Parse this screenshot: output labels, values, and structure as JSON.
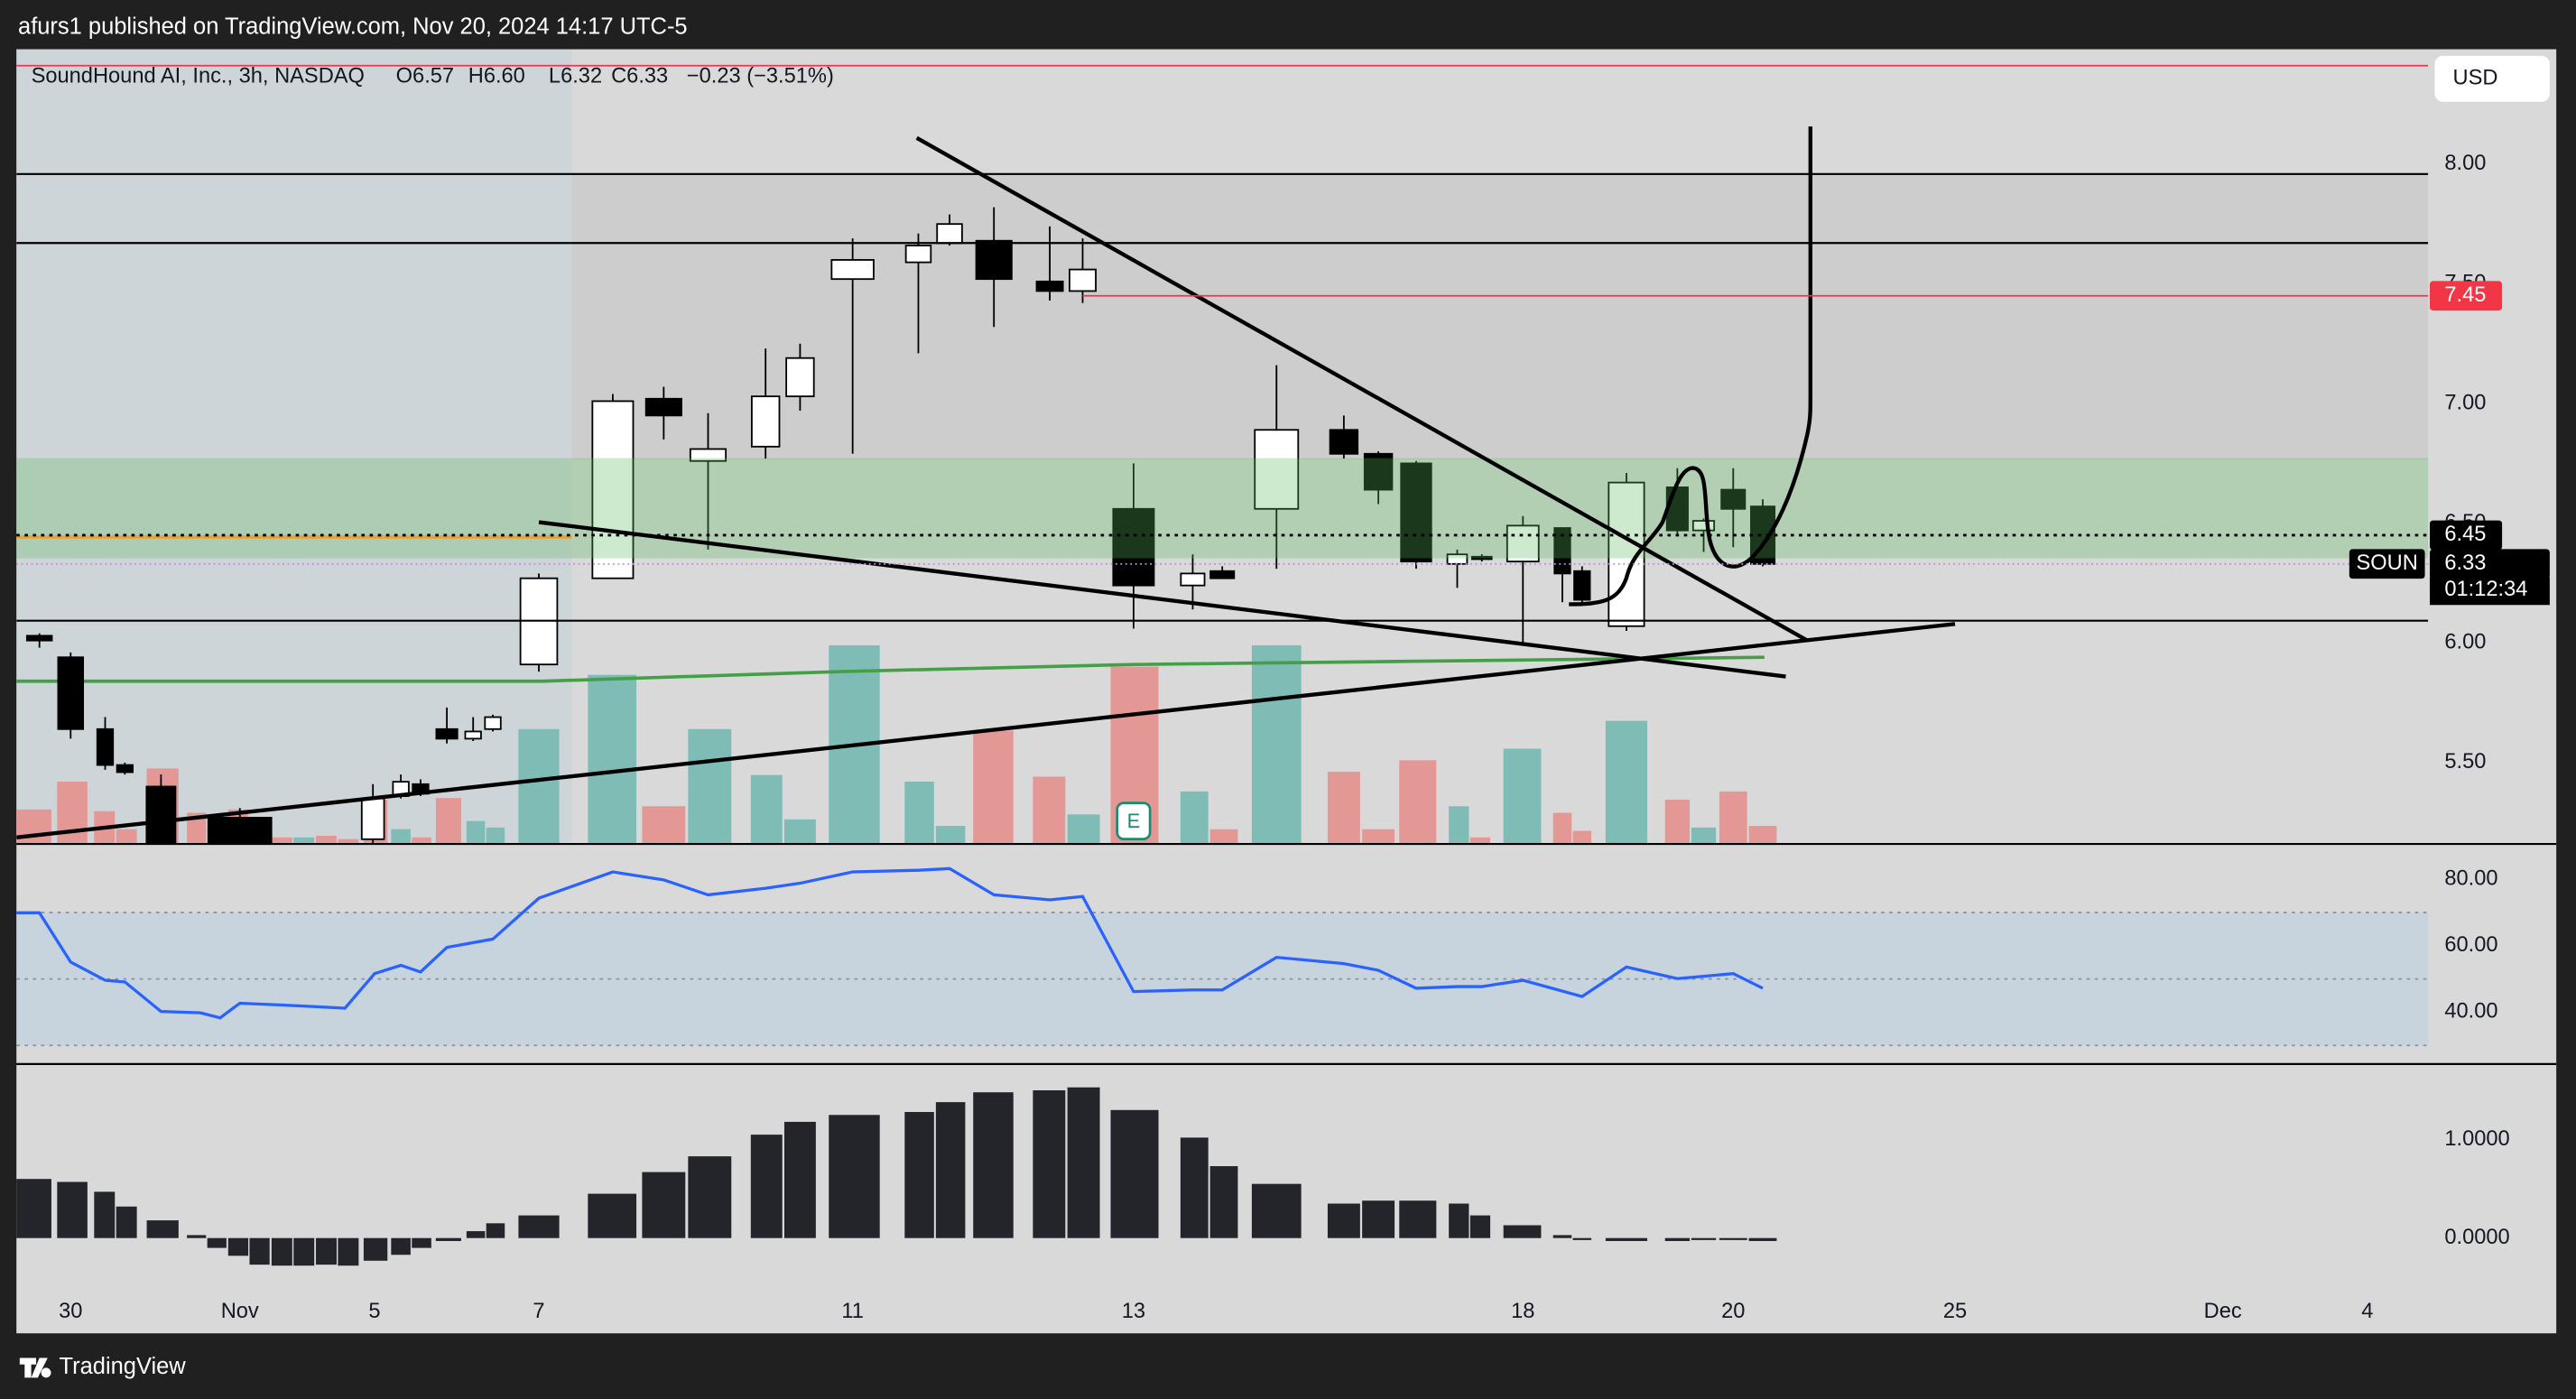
{
  "header": {
    "publisher": "afurs1 published on TradingView.com, Nov 20, 2024 14:17 UTC-5"
  },
  "chart_data": {
    "type": "candlestick",
    "title": "SoundHound AI, Inc., 3h, NASDAQ",
    "ohlc_legend": [
      "O6.57",
      "H6.60",
      "L6.32",
      "C6.33",
      "−0.23 (−3.51%)"
    ],
    "currency": "USD",
    "x": [
      0.7,
      1.65,
      2.7,
      3.3,
      4.4,
      6.8,
      10.85,
      11.7,
      12.3,
      13.1,
      13.9,
      14.5,
      15.9,
      18.15,
      19.7,
      21.05,
      22.8,
      23.85,
      25.45,
      27.45,
      28.4,
      29.75,
      31.45,
      32.45,
      34,
      35.8,
      36.7,
      38.35,
      40.4,
      41.45,
      42.6,
      43.85,
      44.6,
      45.85,
      47.05,
      47.65,
      49,
      50.55,
      51.35,
      52.25,
      53.15
    ],
    "open": [
      6.03,
      5.94,
      5.64,
      5.49,
      5.4,
      5.27,
      5.18,
      5.36,
      5.41,
      5.64,
      5.6,
      5.64,
      5.91,
      6.27,
      7.02,
      6.76,
      6.82,
      7.03,
      7.52,
      7.59,
      7.67,
      7.68,
      7.51,
      7.47,
      6.56,
      6.24,
      6.3,
      6.56,
      6.89,
      6.79,
      6.75,
      6.33,
      6.36,
      6.34,
      6.48,
      6.3,
      6.07,
      6.65,
      6.47,
      6.64,
      6.57
    ],
    "high": [
      6.04,
      5.96,
      5.69,
      5.5,
      5.45,
      5.31,
      5.41,
      5.45,
      5.43,
      5.73,
      5.69,
      5.7,
      6.29,
      7.04,
      7.07,
      6.96,
      7.23,
      7.25,
      7.69,
      7.71,
      7.79,
      7.82,
      7.74,
      7.69,
      6.75,
      6.37,
      6.32,
      7.16,
      6.95,
      6.8,
      6.76,
      6.39,
      6.37,
      6.53,
      6.48,
      6.32,
      6.71,
      6.73,
      6.52,
      6.73,
      6.6
    ],
    "low": [
      5.98,
      5.6,
      5.47,
      5.45,
      5.08,
      5.1,
      5.16,
      5.35,
      5.36,
      5.58,
      5.59,
      5.63,
      5.88,
      6.27,
      6.85,
      6.39,
      6.77,
      6.97,
      6.79,
      7.21,
      7.66,
      7.32,
      7.43,
      7.42,
      6.06,
      6.14,
      6.27,
      6.31,
      6.77,
      6.58,
      6.31,
      6.23,
      6.34,
      6.0,
      6.17,
      6.16,
      6.05,
      6.45,
      6.38,
      6.4,
      6.32
    ],
    "close": [
      6.01,
      5.64,
      5.49,
      5.46,
      5.12,
      5.14,
      5.35,
      5.42,
      5.37,
      5.6,
      5.63,
      5.69,
      6.27,
      7.01,
      6.95,
      6.81,
      7.03,
      7.19,
      7.6,
      7.66,
      7.75,
      7.52,
      7.47,
      7.56,
      6.24,
      6.29,
      6.27,
      6.89,
      6.79,
      6.64,
      6.34,
      6.37,
      6.35,
      6.49,
      6.29,
      6.18,
      6.67,
      6.47,
      6.51,
      6.56,
      6.33
    ],
    "up_color": "#ffffff",
    "down_color": "#000000",
    "xlim": [
      0,
      73.4
    ],
    "xticks": [
      {
        "value": 1.65,
        "label": "30"
      },
      {
        "value": 6.8,
        "label": "Nov"
      },
      {
        "value": 10.9,
        "label": "5"
      },
      {
        "value": 15.9,
        "label": "7"
      },
      {
        "value": 25.45,
        "label": "11"
      },
      {
        "value": 34,
        "label": "13"
      },
      {
        "value": 45.85,
        "label": "18"
      },
      {
        "value": 52.25,
        "label": "20"
      },
      {
        "value": 59,
        "label": "25"
      },
      {
        "value": 67.15,
        "label": "Dec"
      },
      {
        "value": 71.55,
        "label": "4"
      }
    ],
    "ylim": [
      5.16,
      8.48
    ],
    "yticks": [
      {
        "value": 5.5,
        "label": "5.50"
      },
      {
        "value": 6,
        "label": "6.00"
      },
      {
        "value": 6.5,
        "label": "6.50"
      },
      {
        "value": 7,
        "label": "7.00"
      },
      {
        "value": 7.5,
        "label": "7.50"
      },
      {
        "value": 8,
        "label": "8.00"
      }
    ],
    "price_labels": [
      {
        "value": 7.45,
        "color": "#f23645"
      },
      {
        "value": 6.45,
        "color": "#000000"
      },
      {
        "value": 6.33,
        "color": "#000000"
      }
    ],
    "symbol_tag": "SOUN",
    "countdown": "01:12:34",
    "earnings_marker": {
      "x": 34,
      "label": "E"
    },
    "moving_average": {
      "color": "#43a047",
      "x": [
        0,
        16,
        25,
        34,
        53.2
      ],
      "values": [
        5.84,
        5.84,
        5.88,
        5.91,
        5.94
      ]
    },
    "volume": {
      "x": [
        0.5,
        1.7,
        2.68,
        3.35,
        4.45,
        5.48,
        6.1,
        6.75,
        7.4,
        8.08,
        8.75,
        9.43,
        10.1,
        10.93,
        11.7,
        12.33,
        13.15,
        13.98,
        14.58,
        15.9,
        18.13,
        19.7,
        21.1,
        22.83,
        23.85,
        25.5,
        27.48,
        28.43,
        29.73,
        31.43,
        32.48,
        34.03,
        35.85,
        36.75,
        38.35,
        40.4,
        41.45,
        42.65,
        43.9,
        44.55,
        45.83,
        47.05,
        47.65,
        49,
        50.55,
        51.35,
        52.25,
        53.15
      ],
      "values": [
        21,
        38,
        20,
        9,
        46,
        19,
        11,
        21,
        6,
        4,
        4,
        5,
        3,
        27,
        9,
        4,
        28,
        14,
        10,
        70,
        103,
        23,
        70,
        42,
        15,
        121,
        38,
        11,
        69,
        41,
        18,
        108,
        32,
        9,
        121,
        44,
        9,
        51,
        23,
        4,
        58,
        19,
        8,
        75,
        27,
        10,
        32,
        11
      ],
      "up": [
        false,
        false,
        false,
        false,
        false,
        false,
        false,
        false,
        false,
        false,
        true,
        false,
        false,
        false,
        true,
        false,
        false,
        true,
        true,
        true,
        true,
        false,
        true,
        true,
        true,
        true,
        true,
        true,
        false,
        false,
        true,
        false,
        true,
        false,
        true,
        false,
        false,
        false,
        true,
        false,
        true,
        false,
        false,
        true,
        false,
        true,
        false,
        false
      ],
      "up_color": "#7fbcb5",
      "down_color": "#e39896"
    },
    "rsi": {
      "color": "#2962ff",
      "x": [
        0,
        0.7,
        1.65,
        2.7,
        3.3,
        4.4,
        5.6,
        6.2,
        6.8,
        8,
        9,
        10,
        10.9,
        11.7,
        12.3,
        13.1,
        14.5,
        15.9,
        18.15,
        19.7,
        21.05,
        22.8,
        23.85,
        25.45,
        27.45,
        28.4,
        29.75,
        31.45,
        32.45,
        34,
        35.8,
        36.7,
        38.35,
        40.4,
        41.45,
        42.6,
        43.85,
        44.6,
        45.85,
        47.65,
        49,
        50.55,
        52.25,
        53.15
      ],
      "values": [
        69.9,
        69.9,
        55.1,
        49.6,
        49.1,
        40.2,
        39.8,
        38.3,
        42.7,
        42.2,
        41.7,
        41.2,
        51.6,
        54.1,
        52.1,
        59.5,
        62.0,
        74.3,
        82.2,
        79.8,
        75.3,
        77.3,
        78.8,
        82.2,
        82.7,
        83.2,
        75.3,
        73.8,
        74.8,
        46.2,
        46.7,
        46.7,
        56.5,
        54.6,
        52.6,
        47.2,
        47.7,
        47.7,
        49.6,
        44.7,
        53.6,
        50.1,
        51.6,
        47.2
      ],
      "band": [
        30,
        70
      ],
      "ylim": [
        24.4,
        90.6
      ],
      "yticks": [
        {
          "value": 40,
          "label": "40.00"
        },
        {
          "value": 60,
          "label": "60.00"
        },
        {
          "value": 80,
          "label": "80.00"
        }
      ]
    },
    "histogram": {
      "color": "#23252b",
      "values": [
        0.6,
        0.57,
        0.47,
        0.32,
        0.18,
        0.03,
        -0.1,
        -0.18,
        -0.27,
        -0.28,
        -0.28,
        -0.27,
        -0.28,
        -0.23,
        -0.17,
        -0.1,
        -0.03,
        0.07,
        0.15,
        0.23,
        0.45,
        0.67,
        0.83,
        1.05,
        1.18,
        1.25,
        1.28,
        1.38,
        1.48,
        1.5,
        1.53,
        1.3,
        1.02,
        0.73,
        0.55,
        0.35,
        0.38,
        0.38,
        0.35,
        0.23,
        0.13,
        0.03,
        -0.02,
        -0.03,
        -0.03,
        -0.02,
        -0.02,
        -0.03
      ],
      "ylim": [
        -0.517,
        1.767
      ],
      "yticks": [
        {
          "value": 0,
          "label": "0.0000"
        },
        {
          "value": 1,
          "label": "1.0000"
        }
      ]
    }
  },
  "footer": {
    "brand": "TradingView"
  }
}
